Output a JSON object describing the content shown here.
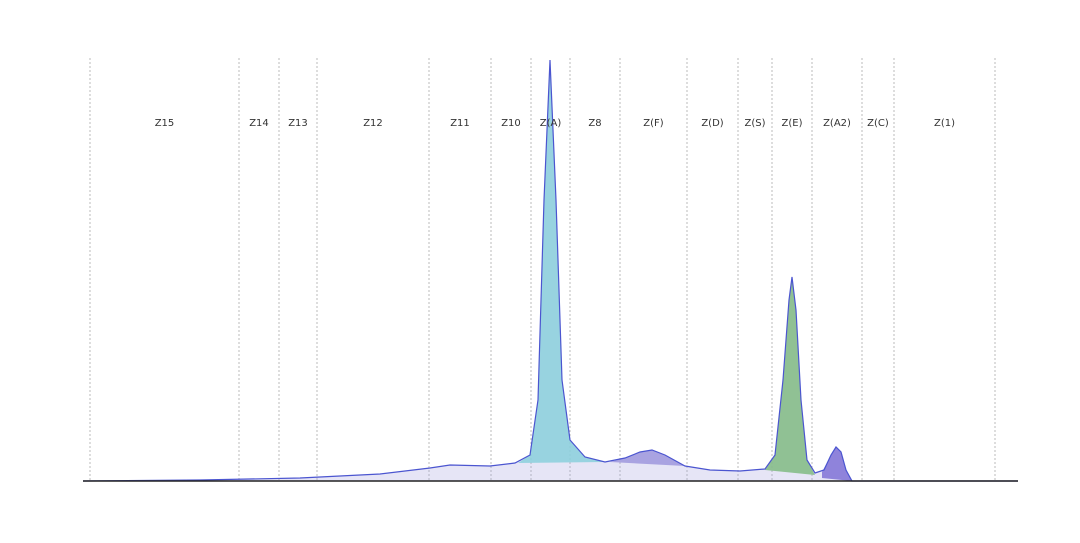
{
  "zones": [
    "Z15",
    "Z14",
    "Z13",
    "Z12",
    "Z11",
    "Z10",
    "Z(A)",
    "Z8",
    "Z(F)",
    "Z(D)",
    "Z(S)",
    "Z(E)",
    "Z(A2)",
    "Z(C)",
    "Z(1)"
  ]
}
